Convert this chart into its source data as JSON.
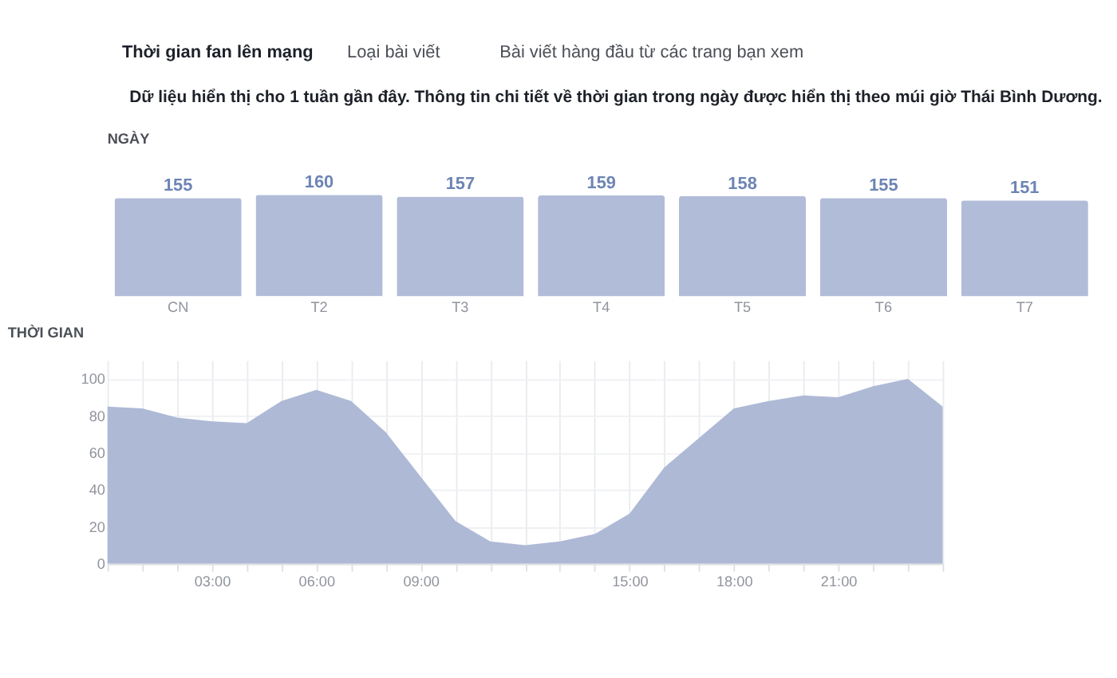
{
  "chart_data": [
    {
      "type": "bar",
      "title": "NGÀY",
      "annotations": [
        "Thời gian fan lên mạng",
        "Loại bài viết",
        "Bài viết hàng đầu từ các trang bạn xem",
        "Dữ liệu hiển thị cho 1 tuần gần đây. Thông tin chi tiết về thời gian trong ngày được hiển thị theo múi giờ Thái Bình Dương."
      ],
      "categories": [
        "CN",
        "T2",
        "T3",
        "T4",
        "T5",
        "T6",
        "T7"
      ],
      "values": [
        155,
        160,
        157,
        159,
        158,
        155,
        151
      ],
      "color": "#b1bcd8",
      "data_labels": true,
      "tick_labels": "x"
    },
    {
      "type": "area",
      "title": "THỜI GIAN",
      "x": [
        0,
        1,
        2,
        3,
        4,
        5,
        6,
        7,
        8,
        9,
        10,
        11,
        12,
        13,
        14,
        15,
        16,
        17,
        18,
        19,
        20,
        21,
        22,
        23,
        24
      ],
      "values": [
        85,
        84,
        79,
        77,
        76,
        88,
        94,
        88,
        71,
        47,
        23,
        12,
        10,
        12,
        16,
        27,
        52,
        68,
        84,
        88,
        91,
        90,
        96,
        100,
        85
      ],
      "color": "#aeb9d6",
      "xlim": [
        0,
        24
      ],
      "xticks": [
        {
          "value": 0,
          "label": null
        },
        {
          "value": 1,
          "label": null
        },
        {
          "value": 2,
          "label": null
        },
        {
          "value": 3,
          "label": "03:00"
        },
        {
          "value": 4,
          "label": null
        },
        {
          "value": 5,
          "label": null
        },
        {
          "value": 6,
          "label": "06:00"
        },
        {
          "value": 7,
          "label": null
        },
        {
          "value": 8,
          "label": null
        },
        {
          "value": 9,
          "label": "09:00"
        },
        {
          "value": 10,
          "label": null
        },
        {
          "value": 11,
          "label": null
        },
        {
          "value": 12,
          "label": null
        },
        {
          "value": 13,
          "label": null
        },
        {
          "value": 14,
          "label": null
        },
        {
          "value": 15,
          "label": "15:00"
        },
        {
          "value": 16,
          "label": null
        },
        {
          "value": 17,
          "label": null
        },
        {
          "value": 18,
          "label": "18:00"
        },
        {
          "value": 19,
          "label": null
        },
        {
          "value": 20,
          "label": null
        },
        {
          "value": 21,
          "label": "21:00"
        },
        {
          "value": 22,
          "label": null
        },
        {
          "value": 23,
          "label": null
        },
        {
          "value": 24,
          "label": null
        }
      ],
      "ylim": [
        0,
        110
      ],
      "yticks": [
        0,
        20,
        40,
        60,
        80,
        100
      ],
      "grid": true
    }
  ]
}
